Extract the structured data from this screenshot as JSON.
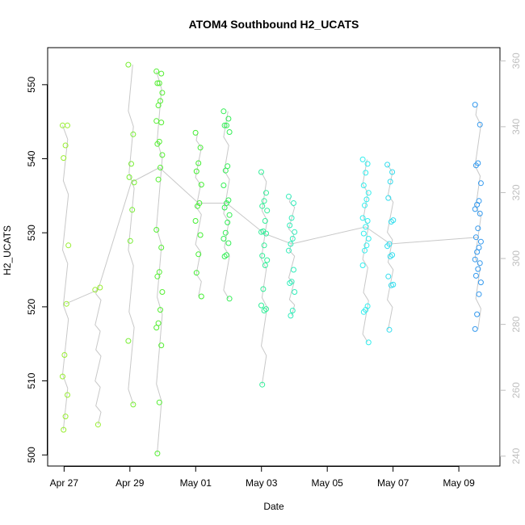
{
  "chart_data": {
    "type": "scatter",
    "title": "ATOM4 Southbound H2_UCATS",
    "xlabel": "Date",
    "ylabel": "H2_UCATS",
    "x_unit": "date",
    "xlim": [
      "2018-04-26T12:00",
      "2018-05-10T06:00"
    ],
    "ylim": [
      498.5,
      555
    ],
    "x_ticks": [
      {
        "label": "Apr 27",
        "value": "2018-04-27"
      },
      {
        "label": "Apr 29",
        "value": "2018-04-29"
      },
      {
        "label": "May 01",
        "value": "2018-05-01"
      },
      {
        "label": "May 03",
        "value": "2018-05-03"
      },
      {
        "label": "May 05",
        "value": "2018-05-05"
      },
      {
        "label": "May 07",
        "value": "2018-05-07"
      },
      {
        "label": "May 09",
        "value": "2018-05-09"
      }
    ],
    "y_ticks": [
      500,
      510,
      520,
      530,
      540,
      550
    ],
    "right_axis": {
      "ylim": [
        237,
        364
      ],
      "ticks": [
        240,
        260,
        280,
        300,
        320,
        340,
        360
      ],
      "color": "#bfbfbf"
    },
    "grid": false,
    "legend": "none",
    "line_color": "#c8c8c8",
    "point_groups": [
      {
        "color": "#99ee33",
        "x": "2018-04-27T01:00",
        "y": [
          544.5,
          544.5,
          541.8,
          540.1,
          528.3,
          520.4,
          513.5,
          510.6,
          508.1,
          505.2,
          503.4
        ]
      },
      {
        "color": "#99ee33",
        "x": "2018-04-28T00:45",
        "y": [
          522.3,
          522.6,
          504.1
        ]
      },
      {
        "color": "#77ee33",
        "x": "2018-04-29T01:00",
        "y": [
          552.7,
          543.3,
          539.3,
          537.5,
          536.8,
          533.1,
          528.9,
          515.4,
          506.8
        ]
      },
      {
        "color": "#55ee33",
        "x": "2018-04-29T21:30",
        "y": [
          551.8,
          551.5,
          550.2,
          550.2,
          548.9,
          547.8,
          547.2,
          545.1,
          544.9,
          542.3,
          542.0,
          540.5,
          538.8,
          537.2,
          530.4,
          528.0,
          524.7,
          524.1,
          522.0,
          519.6,
          517.8,
          517.2,
          514.8,
          507.1,
          500.2
        ]
      },
      {
        "color": "#44ee33",
        "x": "2018-05-01T02:00",
        "y": [
          543.5,
          541.5,
          539.4,
          538.3,
          536.5,
          534.0,
          533.6,
          531.6,
          529.7,
          527.1,
          524.6,
          521.4
        ]
      },
      {
        "color": "#33ee55",
        "x": "2018-05-01T22:30",
        "y": [
          546.4,
          545.4,
          544.5,
          544.5,
          543.6,
          539.0,
          538.4,
          536.4,
          534.4,
          534.0,
          533.4,
          532.4,
          531.4,
          530.0,
          529.2,
          528.6,
          527.0,
          526.8,
          521.1
        ]
      },
      {
        "color": "#33ee99",
        "x": "2018-05-03T02:00",
        "y": [
          538.2,
          535.4,
          534.3,
          533.6,
          533.0,
          531.6,
          530.2,
          530.1,
          529.9,
          528.3,
          526.9,
          526.3,
          525.6,
          522.4,
          520.2,
          519.7,
          519.5,
          509.5
        ]
      },
      {
        "color": "#33eebb",
        "x": "2018-05-03T22:00",
        "y": [
          534.9,
          534.0,
          532.0,
          531.0,
          530.1,
          529.2,
          528.5,
          527.6,
          525.0,
          523.4,
          523.2,
          522.0,
          519.5,
          518.8
        ]
      },
      {
        "color": "#33eeee",
        "x": "2018-05-06T04:00",
        "y": [
          539.9,
          539.3,
          538.1,
          536.4,
          535.4,
          534.5,
          533.7,
          532.0,
          531.6,
          530.8,
          529.9,
          529.2,
          528.3,
          527.6,
          525.6,
          520.1,
          519.6,
          519.3,
          515.2
        ]
      },
      {
        "color": "#33ddee",
        "x": "2018-05-06T22:00",
        "y": [
          539.2,
          538.2,
          536.9,
          534.7,
          531.7,
          531.5,
          528.5,
          528.2,
          527.0,
          526.8,
          524.1,
          523.0,
          522.9,
          516.9
        ]
      },
      {
        "color": "#3399ee",
        "x": "2018-05-09T14:00",
        "y": [
          547.3,
          544.6,
          539.4,
          539.1,
          536.7,
          534.3,
          533.8,
          533.2,
          532.6,
          530.6,
          529.4,
          528.8,
          528.0,
          527.4,
          526.4,
          525.9,
          525.1,
          524.2,
          523.3,
          521.7,
          519.0,
          517.0
        ]
      }
    ]
  }
}
